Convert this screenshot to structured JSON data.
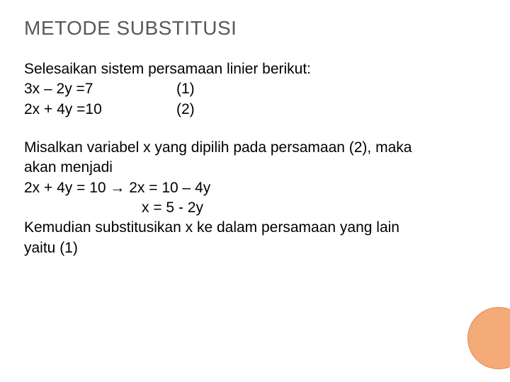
{
  "title": "METODE SUBSTITUSI",
  "intro": "Selesaikan sistem persamaan linier berikut:",
  "eq1_left": "3x – 2y =7",
  "eq1_num": "(1)",
  "eq2_left": "2x + 4y =10",
  "eq2_num": "(2)",
  "para2_l1": "Misalkan variabel x yang dipilih pada persamaan (2), maka",
  "para2_l2": "akan menjadi",
  "para2_l3": "2x + 4y = 10 → 2x = 10 – 4y",
  "para2_l4": "x = 5 - 2y",
  "para2_l5": "Kemudian substitusikan x ke dalam persamaan yang lain",
  "para2_l6": "yaitu (1)",
  "colors": {
    "title": "#595959",
    "body": "#000000",
    "circle_fill": "#f5ab77",
    "circle_border": "#dd8a52",
    "background": "#ffffff"
  },
  "fontsize": {
    "title": 28,
    "body": 21
  }
}
